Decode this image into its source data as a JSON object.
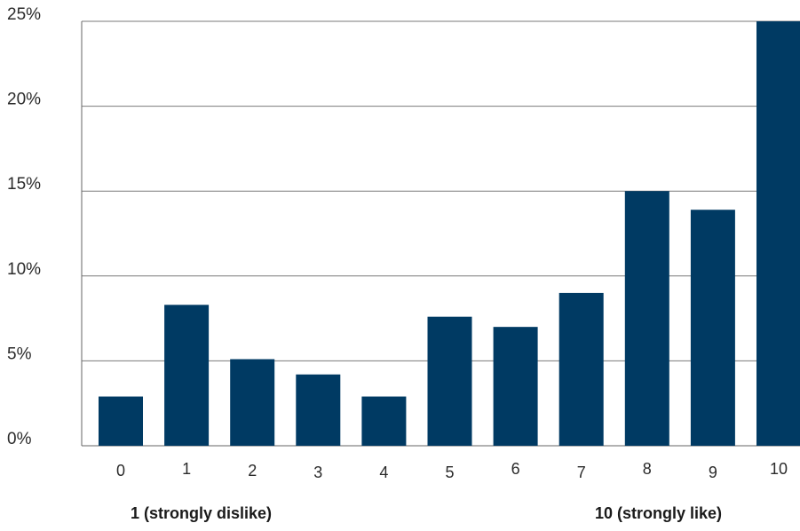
{
  "chart_data": {
    "type": "bar",
    "categories": [
      "0",
      "1",
      "2",
      "3",
      "4",
      "5",
      "6",
      "7",
      "8",
      "9",
      "10"
    ],
    "values": [
      2.9,
      8.3,
      5.1,
      4.2,
      2.9,
      7.6,
      7.0,
      9.0,
      15.0,
      13.9,
      25.0
    ],
    "ylim": [
      0,
      25
    ],
    "yticks": [
      0,
      5,
      10,
      15,
      20,
      25
    ],
    "ytick_labels": [
      "0%",
      "5%",
      "10%",
      "15%",
      "20%",
      "25%"
    ],
    "grid": true,
    "bar_color": "#003a63",
    "annotations": {
      "low": "1 (strongly dislike)",
      "high": "10 (strongly like)"
    }
  }
}
